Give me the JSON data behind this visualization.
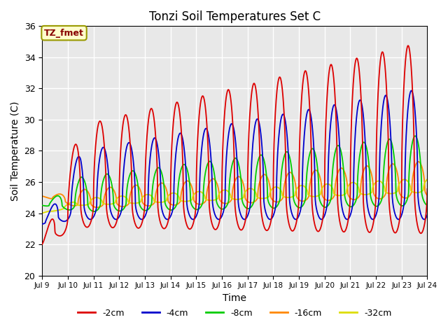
{
  "title": "Tonzi Soil Temperatures Set C",
  "xlabel": "Time",
  "ylabel": "Soil Temperature (C)",
  "annotation": "TZ_fmet",
  "ylim": [
    20,
    36
  ],
  "start_day": 9,
  "end_day": 24,
  "colors": {
    "-2cm": "#dd0000",
    "-4cm": "#0000cc",
    "-8cm": "#00cc00",
    "-16cm": "#ff8800",
    "-32cm": "#dddd00"
  },
  "legend_labels": [
    "-2cm",
    "-4cm",
    "-8cm",
    "-16cm",
    "-32cm"
  ],
  "background_color": "#e8e8e8",
  "grid_color": "white",
  "annotation_bg": "#ffffcc",
  "annotation_border": "#999900",
  "annotation_text_color": "#880000"
}
